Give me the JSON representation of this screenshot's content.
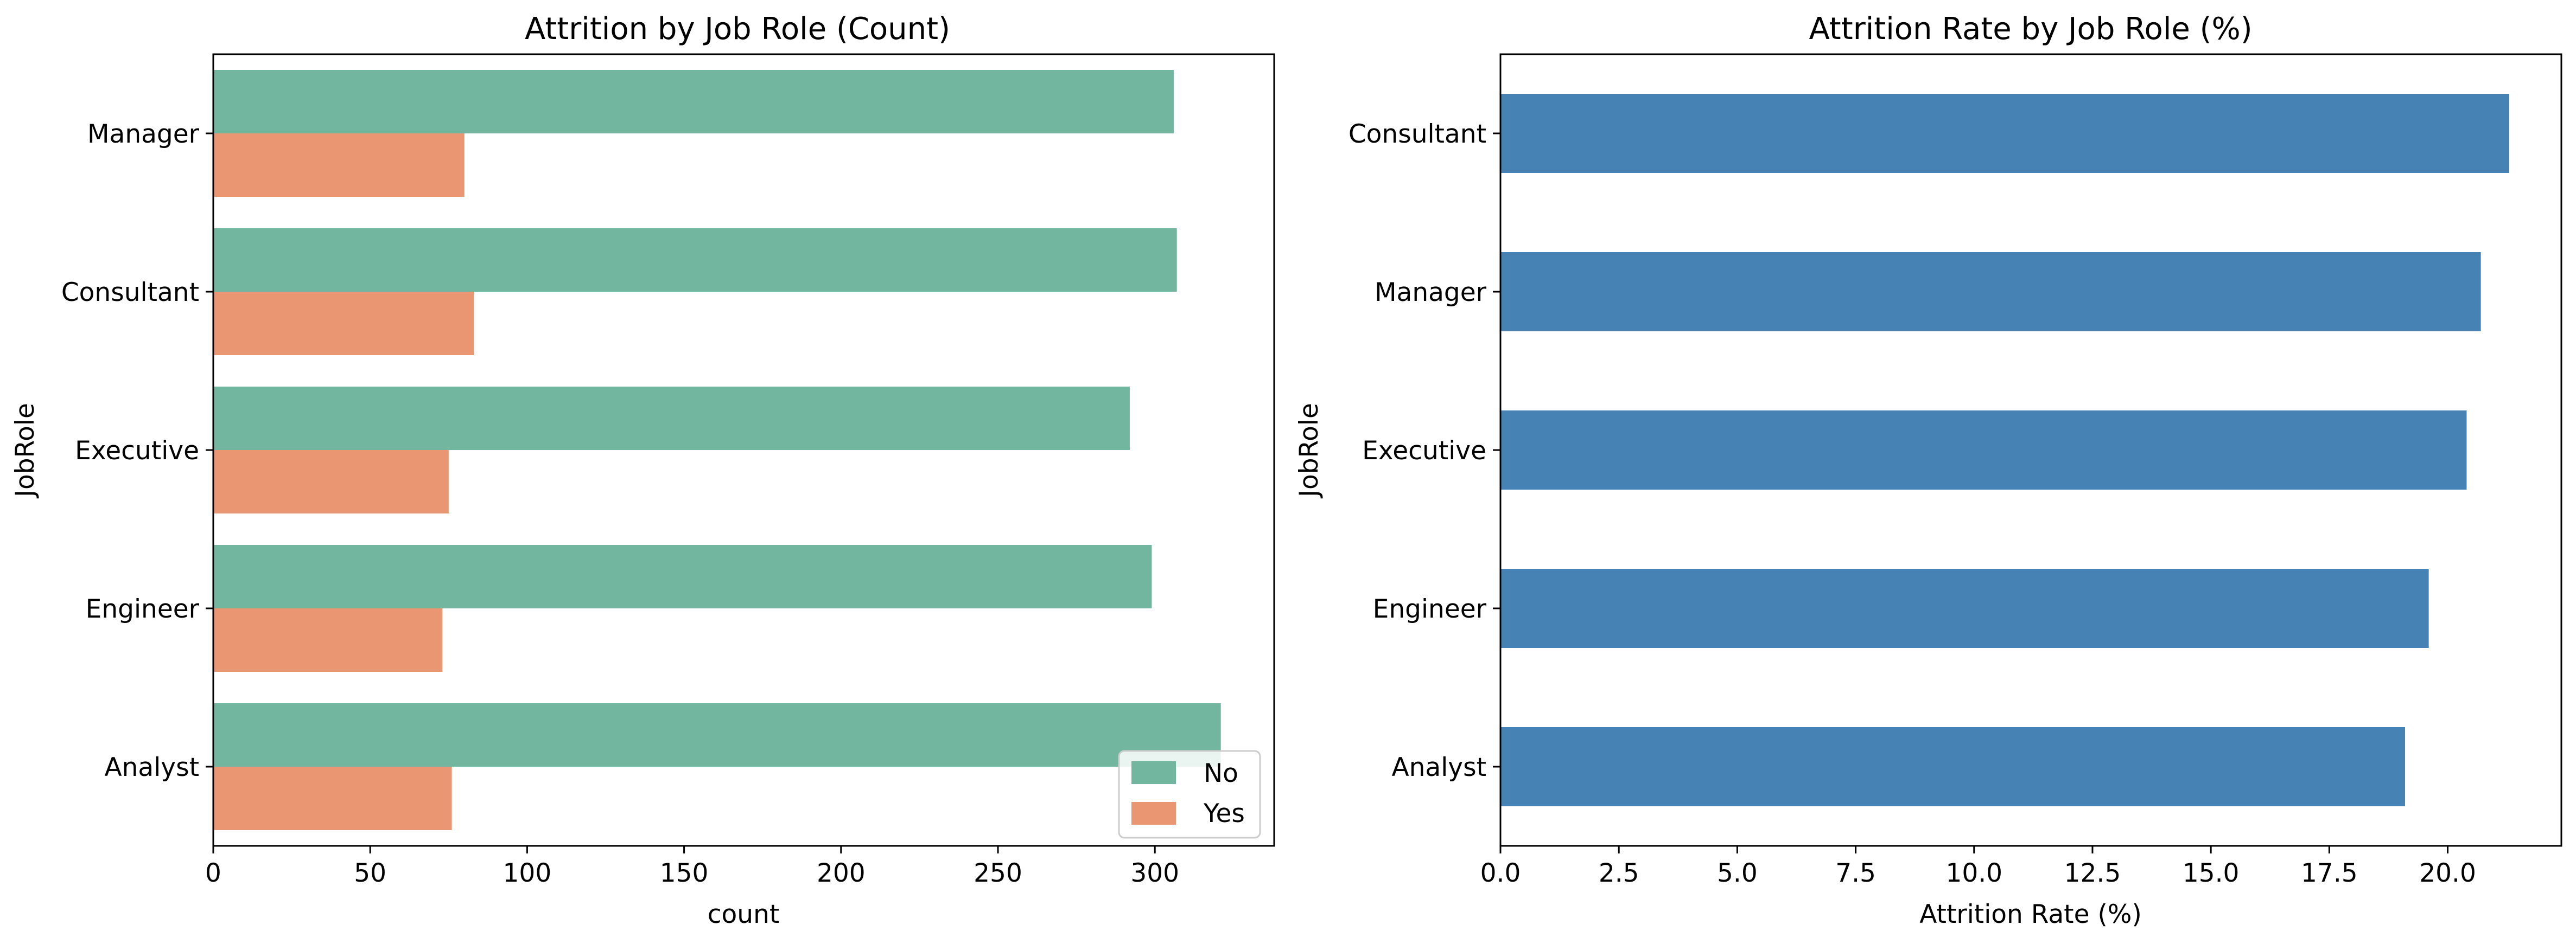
{
  "chart_data": [
    {
      "type": "bar",
      "orientation": "horizontal",
      "title": "Attrition by Job Role (Count)",
      "xlabel": "count",
      "ylabel": "JobRole",
      "categories": [
        "Manager",
        "Consultant",
        "Executive",
        "Engineer",
        "Analyst"
      ],
      "series": [
        {
          "name": "No",
          "color": "#73b6a0",
          "values": [
            306,
            307,
            292,
            299,
            321
          ]
        },
        {
          "name": "Yes",
          "color": "#eb9673",
          "values": [
            80,
            83,
            75,
            73,
            76
          ]
        }
      ],
      "xlim": [
        0,
        338
      ],
      "xticks": [
        0,
        50,
        100,
        150,
        200,
        250,
        300
      ],
      "legend": {
        "placement": "lower-right",
        "entries": [
          "No",
          "Yes"
        ]
      },
      "grid": false
    },
    {
      "type": "bar",
      "orientation": "horizontal",
      "title": "Attrition Rate by Job Role (%)",
      "xlabel": "Attrition Rate (%)",
      "ylabel": "JobRole",
      "categories": [
        "Consultant",
        "Manager",
        "Executive",
        "Engineer",
        "Analyst"
      ],
      "values": [
        21.3,
        20.7,
        20.4,
        19.6,
        19.1
      ],
      "color": "#4682b4",
      "xlim": [
        0,
        22.4
      ],
      "xticks": [
        "0.0",
        "2.5",
        "5.0",
        "7.5",
        "10.0",
        "12.5",
        "15.0",
        "17.5",
        "20.0"
      ],
      "grid": false
    }
  ]
}
